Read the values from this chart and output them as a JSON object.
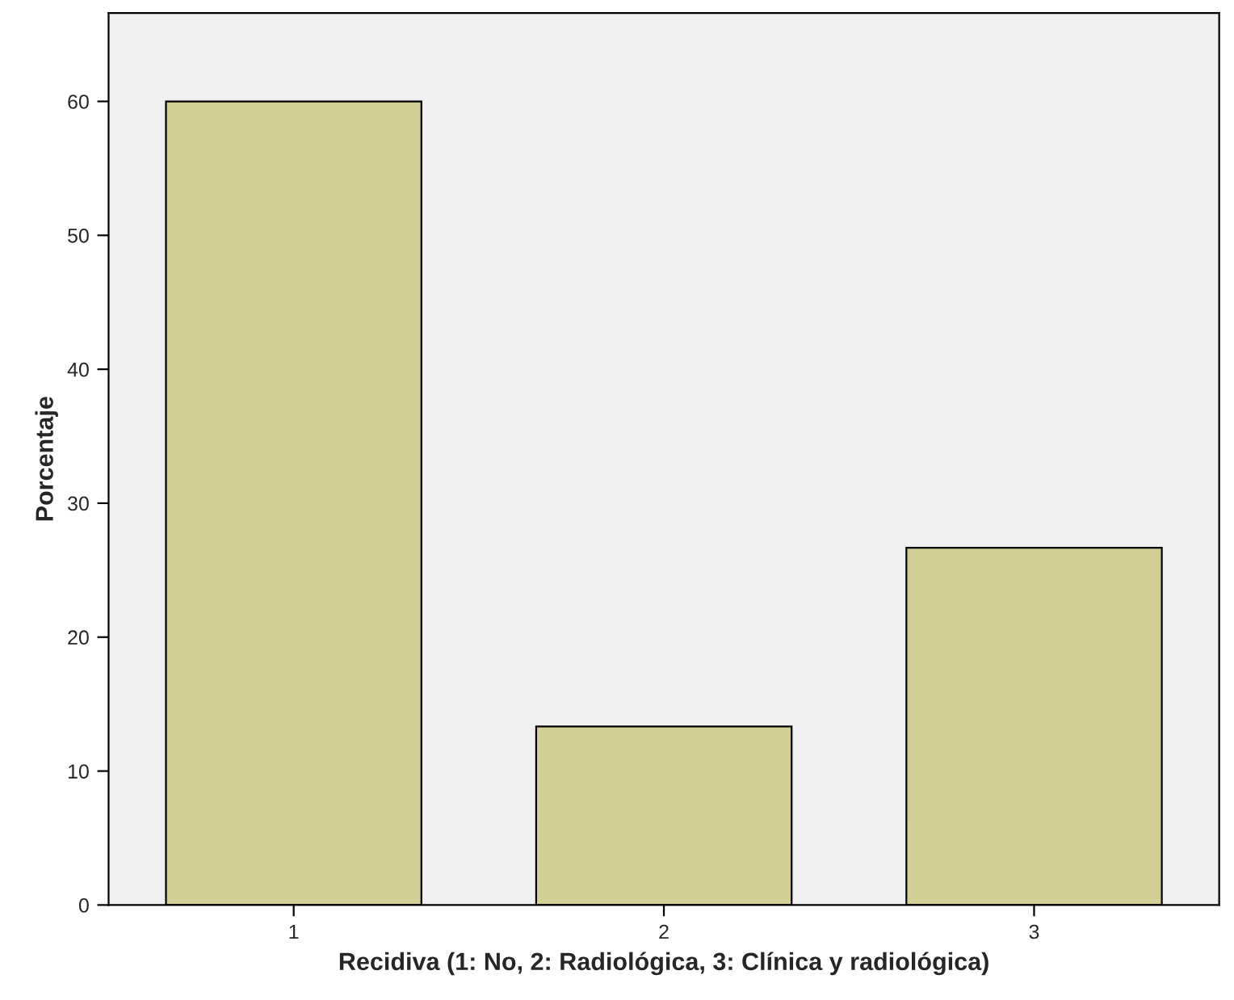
{
  "chart_data": {
    "type": "bar",
    "xlabel": "Recidiva (1: No, 2: Radiológica, 3: Clínica y radiológica)",
    "ylabel": "Porcentaje",
    "categories": [
      "1",
      "2",
      "3"
    ],
    "values": [
      60,
      13.33,
      26.67
    ],
    "color": "#d3ce96",
    "ylim": [
      0,
      66.6
    ],
    "yticks": [
      0,
      10,
      20,
      30,
      40,
      50,
      60
    ],
    "grid": false
  }
}
